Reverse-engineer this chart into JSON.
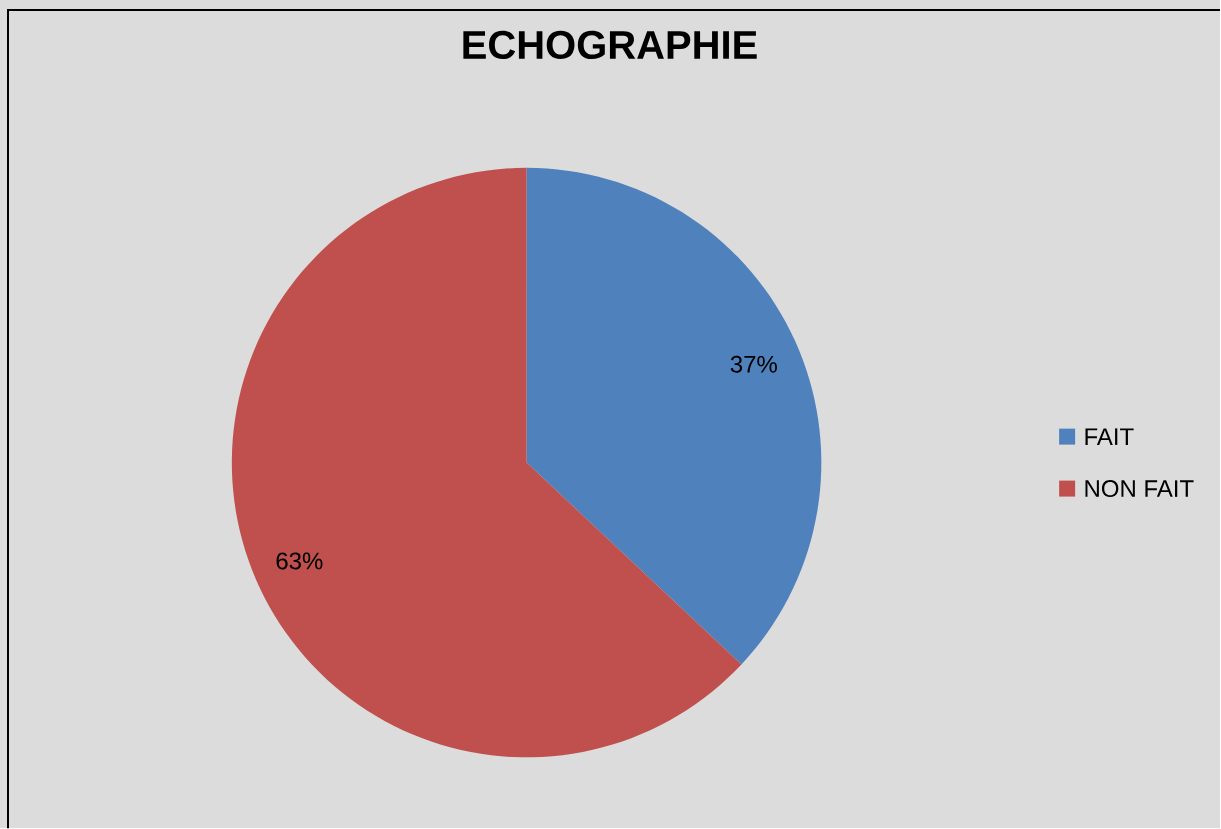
{
  "chart_data": {
    "type": "pie",
    "title": "ECHOGRAPHIE",
    "categories": [
      "FAIT",
      "NON FAIT"
    ],
    "values": [
      37,
      63
    ],
    "colors": [
      "#4f81bd",
      "#c0504d"
    ],
    "value_labels": [
      "37%",
      "63%"
    ],
    "legend": "right"
  }
}
